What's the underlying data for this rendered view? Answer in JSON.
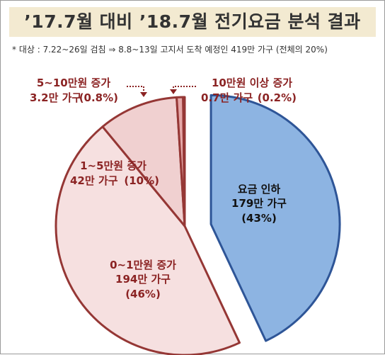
{
  "header": {
    "title": "’17.7월 대비 ’18.7월 전기요금 분석 결과",
    "note": "* 대상 : 7.22~26일 검침 ⇒ 8.8~13일 고지서 도착 예정인 419만 가구 (전체의 20%)"
  },
  "chart_data": {
    "type": "pie",
    "title": "’17.7월 대비 ’18.7월 전기요금 분석 결과",
    "unit": "만 가구",
    "slices": [
      {
        "name": "요금 인하",
        "households": 179,
        "households_label": "179만 가구",
        "percent": 43,
        "percent_label": "(43%)",
        "color": "#8db4e2",
        "stroke": "#2e5597",
        "exploded": true
      },
      {
        "name": "0~1만원 증가",
        "households": 194,
        "households_label": "194만 가구",
        "percent": 46,
        "percent_label": "(46%)",
        "color": "#f6e0e0",
        "stroke": "#953735",
        "exploded": false
      },
      {
        "name": "1~5만원 증가",
        "households": 42,
        "households_label": "42만 가구",
        "percent": 10,
        "percent_label": "(10%)",
        "color": "#f0d0d0",
        "stroke": "#953735",
        "exploded": false
      },
      {
        "name": "5~10만원 증가",
        "households": 3.2,
        "households_label": "3.2만 가구",
        "percent": 0.8,
        "percent_label": "(0.8%)",
        "color": "#e6a8a8",
        "stroke": "#953735",
        "exploded": false
      },
      {
        "name": "10만원 이상 증가",
        "households": 0.7,
        "households_label": "0.7만 가구",
        "percent": 0.2,
        "percent_label": "(0.2%)",
        "color": "#dc9494",
        "stroke": "#953735",
        "exploded": false
      }
    ]
  }
}
